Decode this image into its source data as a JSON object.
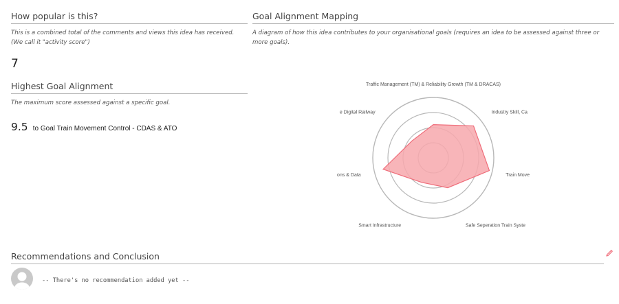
{
  "popularity": {
    "title": "How popular is this?",
    "description": "This is a combined total of the comments and views this idea has received. (We call it \"activity score\")",
    "activity_score": "7"
  },
  "highest_alignment": {
    "title": "Highest Goal Alignment",
    "description": "The maximum score assessed against a specific goal.",
    "score": "9.5",
    "goal_text": "to Goal Train Movement Control - CDAS & ATO"
  },
  "goal_mapping": {
    "title": "Goal Alignment Mapping",
    "description": "A diagram of how this idea contributes to your organisational goals (requires an idea to be assessed against three or more goals)."
  },
  "chart_data": {
    "type": "radar",
    "axes": [
      "Traffic Management (TM) & Reliability Growth (TM & DRACAS)",
      "Industry Skill, Ca",
      "Train Move",
      "Safe Seperation Train Syste",
      "Smart Infrastructure",
      "ons & Data",
      "e Digital Railway"
    ],
    "values": [
      5.5,
      8.5,
      9.5,
      5.5,
      4.5,
      8.5,
      4.5
    ],
    "rmax": 10,
    "rings": 4,
    "fill_color": "#f7a8ad",
    "stroke_color": "#ef6d7a",
    "grid_color": "#b8b8b8"
  },
  "recommendations": {
    "title": "Recommendations and Conclusion",
    "empty_text": "-- There's no recommendation added yet --",
    "edit_icon": "pencil-icon",
    "avatar_icon": "user-avatar-icon"
  }
}
